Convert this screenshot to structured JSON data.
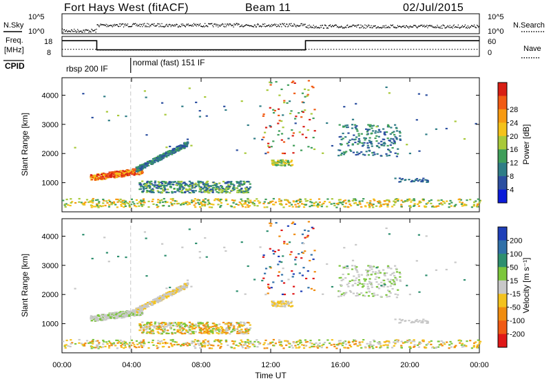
{
  "header": {
    "radar": "Fort Hays West (fitACF)",
    "beam": "Beam 11",
    "date": "02/Jul/2015"
  },
  "side_labels": {
    "nsky": "N.Sky",
    "freq_line1": "Freq.",
    "freq_line2": "[MHz]",
    "cpid": "CPID",
    "nsearch": "N.Search",
    "nave": "Nave"
  },
  "noise_axis": {
    "left_ticks": [
      "10^5",
      "10^0"
    ],
    "right_ticks": [
      "10^5",
      "10^0"
    ]
  },
  "freq_axis": {
    "left_ticks": [
      "18",
      "8"
    ],
    "right_ticks": [
      "60",
      "0"
    ]
  },
  "cpid_modes": [
    {
      "label": "rbsp 200 IF",
      "start": 0.0,
      "end": 3.95
    },
    {
      "label": "normal (fast) 151 IF",
      "start": 3.95,
      "end": 24.0
    }
  ],
  "chart_data": [
    {
      "type": "line",
      "name": "status_panels",
      "x_range": [
        0,
        24
      ],
      "frequency_mhz": {
        "x": [
          0,
          2,
          2,
          14,
          14,
          24
        ],
        "values": [
          17,
          17,
          11,
          11,
          17,
          17
        ]
      },
      "nave": {
        "x": [
          0,
          2,
          2,
          14,
          14,
          24
        ],
        "values": [
          20,
          20,
          17,
          17,
          20,
          20
        ]
      }
    },
    {
      "type": "heatmap",
      "name": "power_panel",
      "xlabel": "",
      "ylabel": "Slant Range [km]",
      "xlim": [
        0,
        24
      ],
      "ylim": [
        0,
        4600
      ],
      "yticks": [
        1000,
        2000,
        3000,
        4000
      ],
      "colorbar": {
        "label": "Power [dB]",
        "ticks": [
          "4",
          "8",
          "12",
          "16",
          "20",
          "24",
          "28"
        ],
        "colors": [
          "#0b1bd8",
          "#2c4fa0",
          "#2f7d86",
          "#3f9e5a",
          "#a8c93a",
          "#f4c21a",
          "#f79a12",
          "#f15b14",
          "#d81e14"
        ]
      }
    },
    {
      "type": "heatmap",
      "name": "velocity_panel",
      "xlabel": "Time UT",
      "ylabel": "Slant Range [km]",
      "xlim": [
        0,
        24
      ],
      "ylim": [
        0,
        4600
      ],
      "yticks": [
        1000,
        2000,
        3000,
        4000
      ],
      "xticks": [
        "00:00",
        "04:00",
        "08:00",
        "12:00",
        "16:00",
        "20:00",
        "00:00"
      ],
      "colorbar": {
        "label": "Velocity [m s⁻¹]",
        "ticks": [
          "200",
          "100",
          "50",
          "15",
          "-15",
          "-50",
          "-100",
          "-200"
        ],
        "colors": [
          "#1f3fb8",
          "#3070a8",
          "#2e8f6f",
          "#7cc63c",
          "#c8c8c8",
          "#f3c21e",
          "#f08c10",
          "#f05a14",
          "#e01818"
        ]
      }
    }
  ]
}
